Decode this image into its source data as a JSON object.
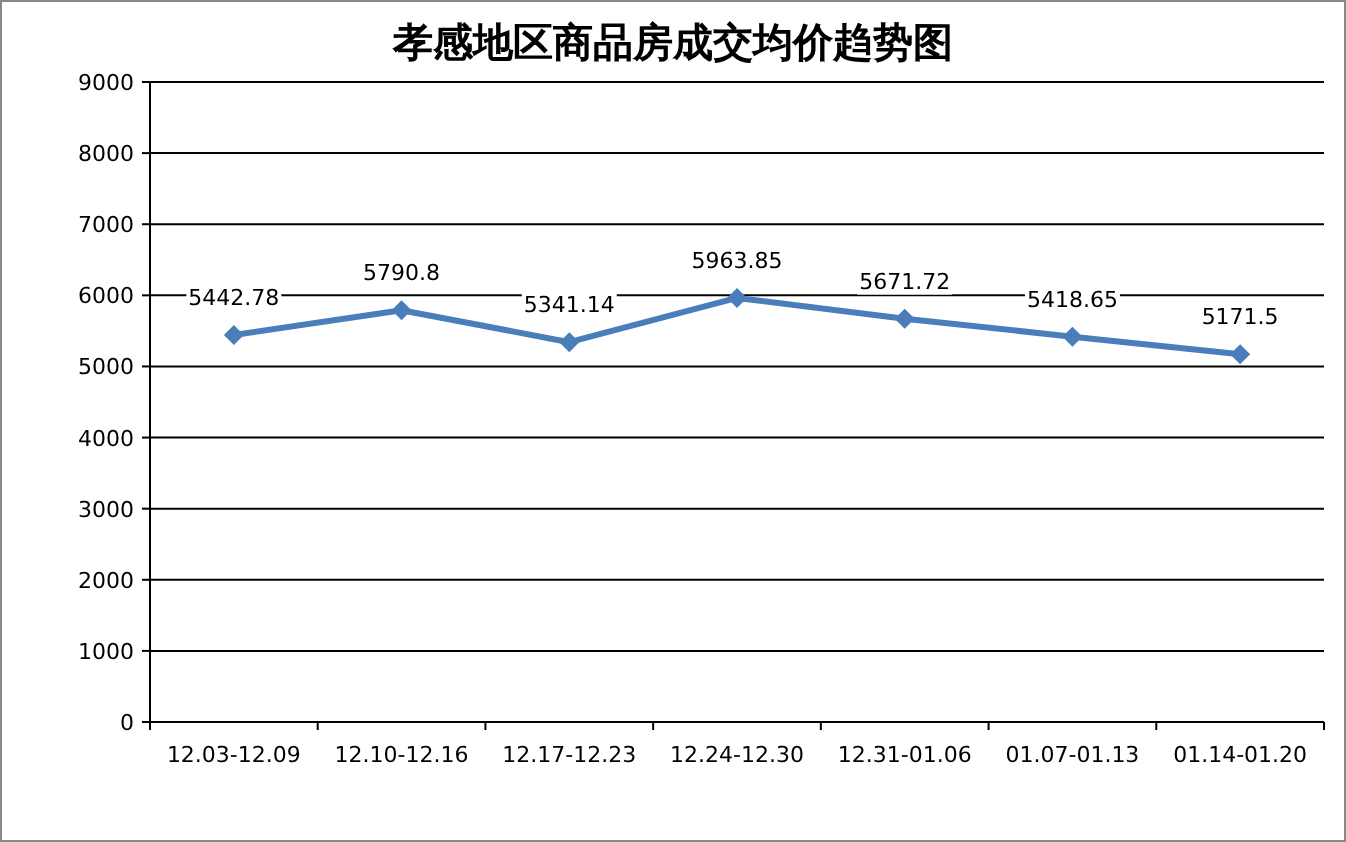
{
  "chart_data": {
    "type": "line",
    "title": "孝感地区商品房成交均价趋势图",
    "categories": [
      "12.03-12.09",
      "12.10-12.16",
      "12.17-12.23",
      "12.24-12.30",
      "12.31-01.06",
      "01.07-01.13",
      "01.14-01.20"
    ],
    "series": [
      {
        "color": "#4a7ebb",
        "values": [
          5442.78,
          5790.8,
          5341.14,
          5963.85,
          5671.72,
          5418.65,
          5171.5
        ]
      }
    ],
    "ylim": [
      0,
      9000
    ],
    "yticks": [
      0,
      1000,
      2000,
      3000,
      4000,
      5000,
      6000,
      7000,
      8000,
      9000
    ],
    "grid": "y",
    "marker": "diamond",
    "line_style": "solid",
    "data_labels": true
  }
}
